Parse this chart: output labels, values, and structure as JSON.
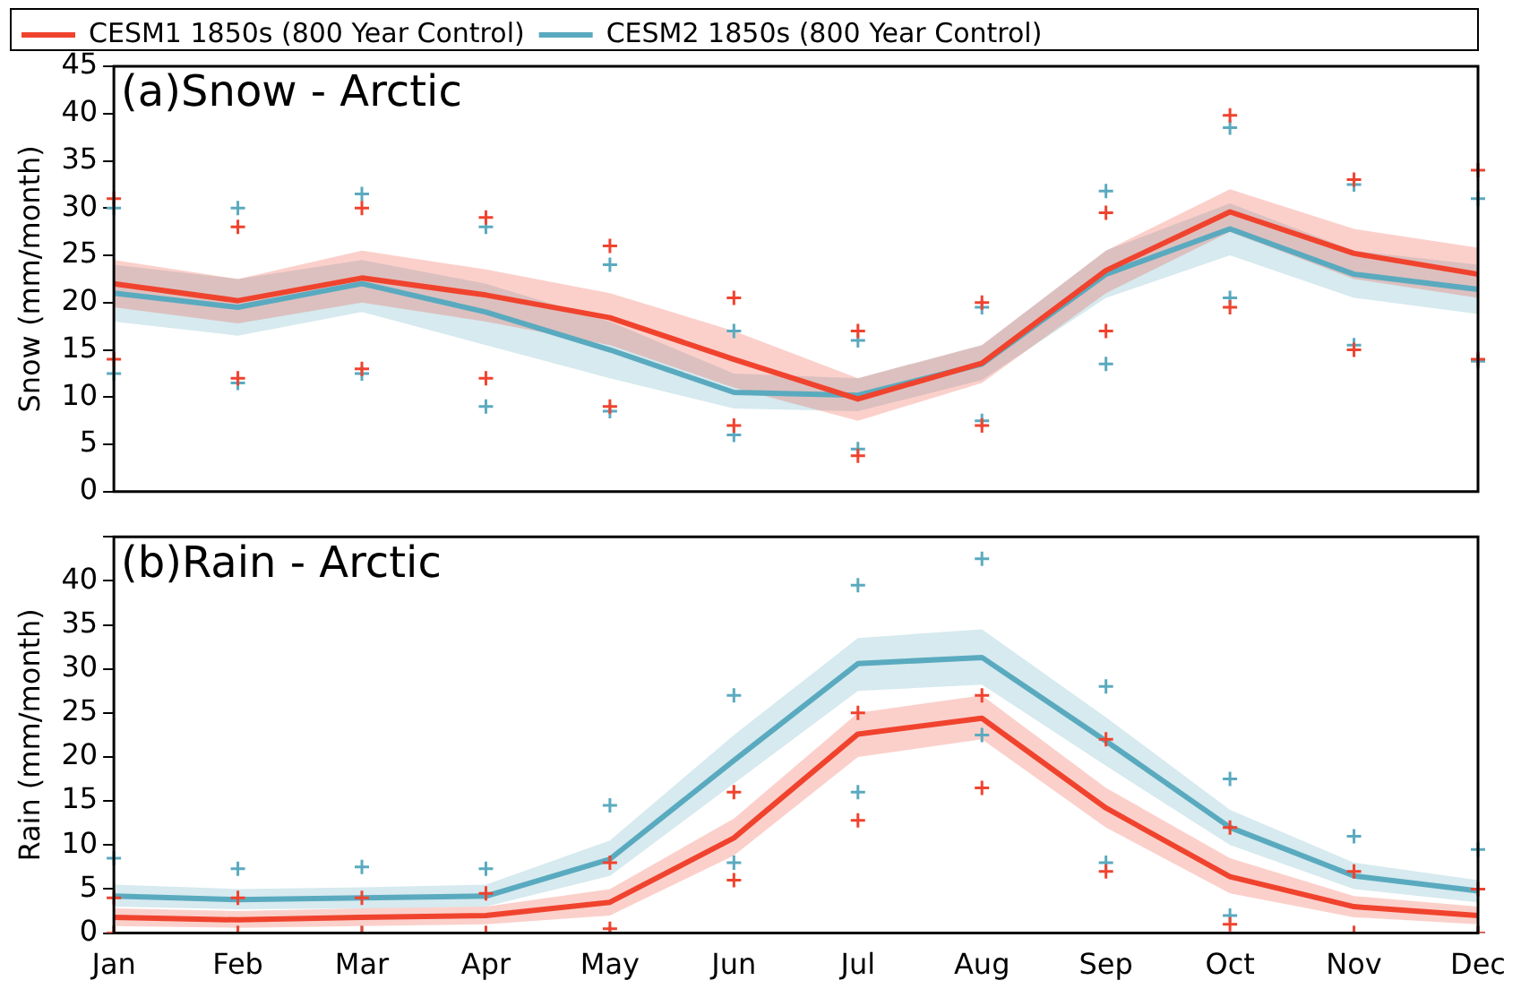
{
  "chart_data": [
    {
      "type": "line",
      "title": "(a)Snow - Arctic",
      "ylabel": "Snow (mm/month)",
      "categories": [
        "Jan",
        "Feb",
        "Mar",
        "Apr",
        "May",
        "Jun",
        "Jul",
        "Aug",
        "Sep",
        "Oct",
        "Nov",
        "Dec"
      ],
      "ylim": [
        0,
        45
      ],
      "yticks": [
        0,
        5,
        10,
        15,
        20,
        25,
        30,
        35,
        40,
        45
      ],
      "tick_labels": "y",
      "legend": "top",
      "grid": false,
      "series": [
        {
          "type": "scatter",
          "color": "#f0432e",
          "marker": "cross",
          "x": [
            "Jan",
            "Jan",
            "Feb",
            "Feb",
            "Mar",
            "Mar",
            "Apr",
            "Apr",
            "May",
            "May",
            "Jun",
            "Jun",
            "Jul",
            "Jul",
            "Aug",
            "Aug",
            "Sep",
            "Sep",
            "Oct",
            "Oct",
            "Nov",
            "Nov",
            "Dec",
            "Dec"
          ],
          "values": [
            14,
            31,
            12,
            28,
            13,
            30,
            12,
            29,
            9,
            26,
            7,
            20.5,
            3.8,
            17,
            7,
            20,
            17,
            29.5,
            19.5,
            39.8,
            15,
            33,
            14,
            34
          ]
        },
        {
          "type": "scatter",
          "color": "#5aaabf",
          "marker": "cross",
          "x": [
            "Jan",
            "Jan",
            "Feb",
            "Feb",
            "Mar",
            "Mar",
            "Apr",
            "Apr",
            "May",
            "May",
            "Jun",
            "Jun",
            "Jul",
            "Jul",
            "Aug",
            "Aug",
            "Sep",
            "Sep",
            "Oct",
            "Oct",
            "Nov",
            "Nov",
            "Dec",
            "Dec"
          ],
          "values": [
            12.5,
            30,
            11.5,
            30,
            12.5,
            31.5,
            9,
            28,
            8.5,
            24,
            6,
            17,
            4.5,
            16,
            7.5,
            19.5,
            13.5,
            31.8,
            20.5,
            38.5,
            15.5,
            32.5,
            13.8,
            31
          ]
        },
        {
          "name": "CESM1 1850s (800 Year Control)",
          "type": "line",
          "color": "#f0432e",
          "values": [
            22,
            20.2,
            22.6,
            20.8,
            18.4,
            14,
            9.8,
            13.6,
            23.4,
            29.6,
            25.2,
            23
          ],
          "lower": [
            19.5,
            17.8,
            20,
            18,
            15.5,
            11,
            7.5,
            11.5,
            21,
            27.5,
            22.5,
            20.5
          ],
          "upper": [
            24.5,
            22.5,
            25.5,
            23.5,
            21,
            17,
            12,
            15.5,
            25.5,
            32,
            27.8,
            25.8
          ]
        },
        {
          "name": "CESM2 1850s (800 Year Control)",
          "type": "line",
          "color": "#5aaabf",
          "values": [
            21,
            19.5,
            22,
            19,
            15,
            10.5,
            10.2,
            13.5,
            23,
            27.8,
            23,
            21.4
          ],
          "lower": [
            18,
            16.5,
            19,
            15.5,
            12,
            8.8,
            8.5,
            11.8,
            20.5,
            25,
            20.5,
            18.8
          ],
          "upper": [
            24,
            22.5,
            24.5,
            22,
            18,
            12.5,
            12,
            15.5,
            25.5,
            30.5,
            25.5,
            24
          ]
        }
      ]
    },
    {
      "type": "line",
      "title": "(b)Rain - Arctic",
      "ylabel": "Rain (mm/month)",
      "categories": [
        "Jan",
        "Feb",
        "Mar",
        "Apr",
        "May",
        "Jun",
        "Jul",
        "Aug",
        "Sep",
        "Oct",
        "Nov",
        "Dec"
      ],
      "ylim": [
        0,
        45
      ],
      "yticks": [
        0,
        5,
        10,
        15,
        20,
        25,
        30,
        35,
        40,
        {
          "value": 45,
          "label": null
        }
      ],
      "legend": false,
      "grid": false,
      "series": [
        {
          "type": "scatter",
          "color": "#f0432e",
          "marker": "cross",
          "x": [
            "Jan",
            "Jan",
            "Feb",
            "Feb",
            "Mar",
            "Mar",
            "Apr",
            "Apr",
            "May",
            "May",
            "Jun",
            "Jun",
            "Jul",
            "Jul",
            "Aug",
            "Aug",
            "Sep",
            "Sep",
            "Oct",
            "Oct",
            "Nov",
            "Nov",
            "Dec",
            "Dec"
          ],
          "values": [
            0,
            4,
            0,
            4,
            0,
            4,
            0,
            4.5,
            0.5,
            8,
            6,
            16,
            12.8,
            25,
            16.5,
            27,
            7,
            22,
            1,
            12,
            0,
            7,
            0,
            5
          ]
        },
        {
          "type": "scatter",
          "color": "#5aaabf",
          "marker": "cross",
          "x": [
            "Jan",
            "Jan",
            "Feb",
            "Feb",
            "Mar",
            "Mar",
            "Apr",
            "Apr",
            "May",
            "May",
            "Jun",
            "Jun",
            "Jul",
            "Jul",
            "Aug",
            "Aug",
            "Sep",
            "Sep",
            "Oct",
            "Oct",
            "Nov",
            "Nov",
            "Dec",
            "Dec"
          ],
          "values": [
            0,
            8.5,
            0,
            7.3,
            0,
            7.5,
            0,
            7.3,
            0,
            14.5,
            8,
            27,
            16,
            39.5,
            22.5,
            42.5,
            8,
            28,
            2,
            17.5,
            0,
            11,
            0,
            9.5
          ]
        },
        {
          "type": "line",
          "color": "#f0432e",
          "values": [
            1.8,
            1.5,
            1.8,
            2,
            3.5,
            10.8,
            22.6,
            24.4,
            14.2,
            6.4,
            3,
            2
          ],
          "lower": [
            0.8,
            0.6,
            0.8,
            1,
            2,
            8.8,
            20,
            22,
            12,
            4.5,
            1.8,
            1
          ],
          "upper": [
            2.8,
            2.5,
            2.8,
            3,
            5,
            13,
            25,
            27,
            16.5,
            8.5,
            4.2,
            3
          ]
        },
        {
          "type": "line",
          "color": "#5aaabf",
          "values": [
            4.2,
            3.8,
            4,
            4.2,
            8.4,
            19.6,
            30.6,
            31.3,
            21.8,
            12,
            6.5,
            4.8
          ],
          "lower": [
            3,
            2.7,
            2.8,
            3,
            6.5,
            17,
            27.5,
            28.2,
            19,
            10,
            5,
            3.5
          ],
          "upper": [
            5.5,
            5,
            5.2,
            5.5,
            10.5,
            22.5,
            33.5,
            34.5,
            24.5,
            14,
            8,
            6
          ]
        }
      ]
    }
  ]
}
